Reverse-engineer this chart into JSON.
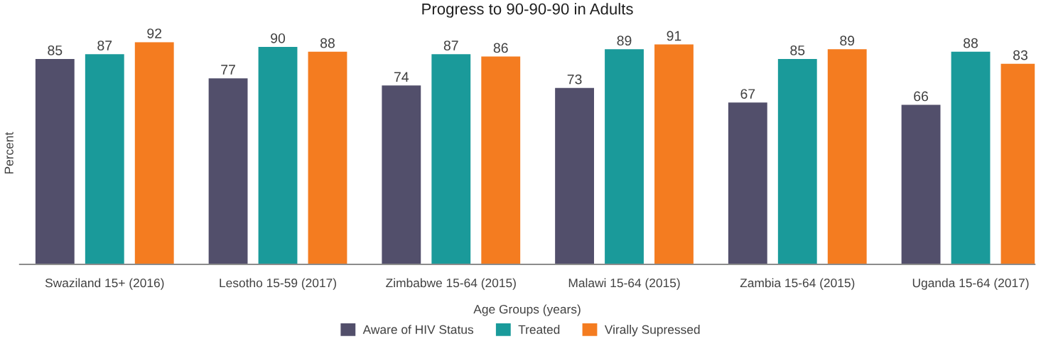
{
  "chart_data": {
    "type": "bar",
    "title": "Progress to 90-90-90 in Adults",
    "xlabel": "Age Groups (years)",
    "ylabel": "Percent",
    "categories": [
      "Swaziland 15+ (2016)",
      "Lesotho 15-59 (2017)",
      "Zimbabwe 15-64 (2015)",
      "Malawi 15-64 (2015)",
      "Zambia 15-64 (2015)",
      "Uganda 15-64 (2017)"
    ],
    "series": [
      {
        "name": "Aware of HIV Status",
        "color": "#524f6b",
        "values": [
          85,
          77,
          74,
          73,
          67,
          66
        ]
      },
      {
        "name": "Treated",
        "color": "#1a9a9a",
        "values": [
          87,
          90,
          87,
          89,
          85,
          88
        ]
      },
      {
        "name": "Virally Supressed",
        "color": "#f47c20",
        "values": [
          92,
          88,
          86,
          91,
          89,
          83
        ]
      }
    ],
    "tick_labels": "x",
    "data_labels": true,
    "grid": false,
    "legend": "bottom"
  }
}
